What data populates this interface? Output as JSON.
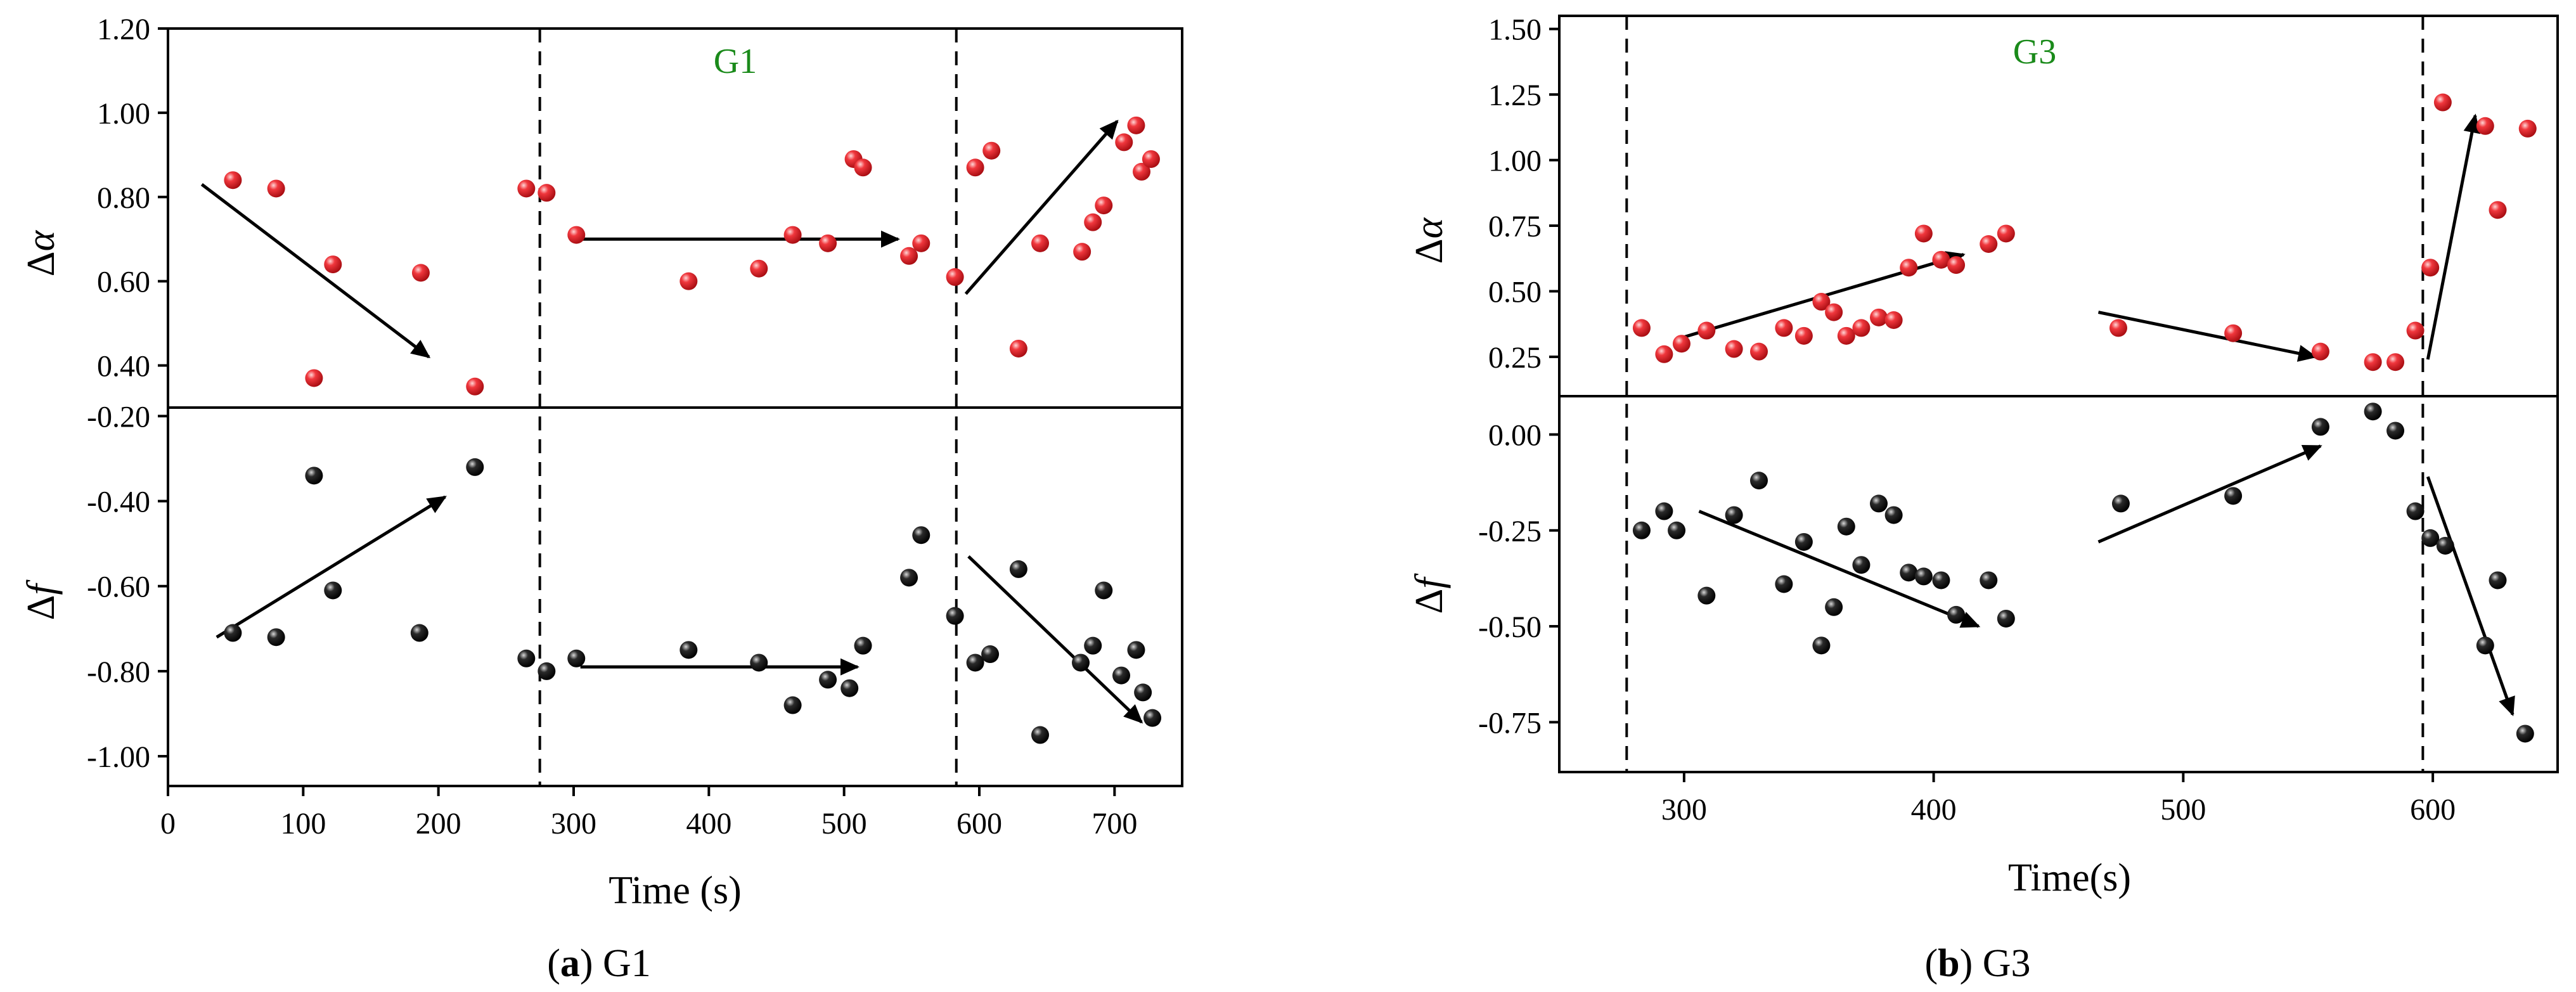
{
  "colors": {
    "red_marker": "#e8202a",
    "black_marker": "#111111",
    "group_label": "#1a8a1a",
    "axis": "#000000"
  },
  "chart_data": [
    {
      "id": "a",
      "type": "scatter",
      "caption": {
        "letter": "a",
        "open": "(",
        "close": ")",
        "rest": " G1"
      },
      "group_label": "G1",
      "xlabel": "Time (s)",
      "xlim": [
        0,
        750
      ],
      "xticks": [
        0,
        100,
        200,
        300,
        400,
        500,
        600,
        700
      ],
      "xtick_labels": [
        "0",
        "100",
        "200",
        "300",
        "400",
        "500",
        "600",
        "700"
      ],
      "dividers_x": [
        275,
        583
      ],
      "top": {
        "ylabel_prefix": "Δ",
        "ylabel_var": "α",
        "ylim": [
          0.3,
          1.2
        ],
        "yticks": [
          0.4,
          0.6,
          0.8,
          1.0,
          1.2
        ],
        "ytick_labels": [
          "0.40",
          "0.60",
          "0.80",
          "1.00",
          "1.20"
        ],
        "marker_color": "red",
        "points": [
          [
            48,
            0.84
          ],
          [
            80,
            0.82
          ],
          [
            108,
            0.37
          ],
          [
            122,
            0.64
          ],
          [
            187,
            0.62
          ],
          [
            227,
            0.35
          ],
          [
            265,
            0.82
          ],
          [
            280,
            0.81
          ],
          [
            302,
            0.71
          ],
          [
            385,
            0.6
          ],
          [
            437,
            0.63
          ],
          [
            462,
            0.71
          ],
          [
            488,
            0.69
          ],
          [
            507,
            0.89
          ],
          [
            514,
            0.87
          ],
          [
            548,
            0.66
          ],
          [
            557,
            0.69
          ],
          [
            582,
            0.61
          ],
          [
            597,
            0.87
          ],
          [
            609,
            0.91
          ],
          [
            629,
            0.44
          ],
          [
            645,
            0.69
          ],
          [
            676,
            0.67
          ],
          [
            684,
            0.74
          ],
          [
            692,
            0.78
          ],
          [
            707,
            0.93
          ],
          [
            716,
            0.97
          ],
          [
            720,
            0.86
          ],
          [
            727,
            0.89
          ]
        ],
        "arrows": [
          [
            [
              25,
              0.83
            ],
            [
              193,
              0.42
            ]
          ],
          [
            [
              305,
              0.7
            ],
            [
              540,
              0.7
            ]
          ],
          [
            [
              590,
              0.57
            ],
            [
              702,
              0.98
            ]
          ]
        ]
      },
      "bottom": {
        "ylabel_prefix": "Δ",
        "ylabel_var": "f",
        "ylim": [
          -1.07,
          -0.18
        ],
        "yticks": [
          -1.0,
          -0.8,
          -0.6,
          -0.4,
          -0.2
        ],
        "ytick_labels": [
          "-1.00",
          "-0.80",
          "-0.60",
          "-0.40",
          "-0.20"
        ],
        "marker_color": "black",
        "points": [
          [
            48,
            -0.71
          ],
          [
            80,
            -0.72
          ],
          [
            108,
            -0.34
          ],
          [
            122,
            -0.61
          ],
          [
            186,
            -0.71
          ],
          [
            227,
            -0.32
          ],
          [
            265,
            -0.77
          ],
          [
            280,
            -0.8
          ],
          [
            302,
            -0.77
          ],
          [
            385,
            -0.75
          ],
          [
            437,
            -0.78
          ],
          [
            462,
            -0.88
          ],
          [
            488,
            -0.82
          ],
          [
            504,
            -0.84
          ],
          [
            514,
            -0.74
          ],
          [
            548,
            -0.58
          ],
          [
            557,
            -0.48
          ],
          [
            582,
            -0.67
          ],
          [
            597,
            -0.78
          ],
          [
            608,
            -0.76
          ],
          [
            629,
            -0.56
          ],
          [
            645,
            -0.95
          ],
          [
            675,
            -0.78
          ],
          [
            684,
            -0.74
          ],
          [
            692,
            -0.61
          ],
          [
            705,
            -0.81
          ],
          [
            716,
            -0.75
          ],
          [
            721,
            -0.85
          ],
          [
            728,
            -0.91
          ]
        ],
        "arrows": [
          [
            [
              36,
              -0.72
            ],
            [
              205,
              -0.39
            ]
          ],
          [
            [
              305,
              -0.79
            ],
            [
              510,
              -0.79
            ]
          ],
          [
            [
              592,
              -0.53
            ],
            [
              720,
              -0.92
            ]
          ]
        ]
      }
    },
    {
      "id": "b",
      "type": "scatter",
      "caption": {
        "letter": "b",
        "open": "(",
        "close": ")",
        "rest": " G3"
      },
      "group_label": "G3",
      "xlabel": "Time(s)",
      "xlim": [
        250,
        650
      ],
      "xticks": [
        300,
        400,
        500,
        600
      ],
      "xtick_labels": [
        "300",
        "400",
        "500",
        "600"
      ],
      "dividers_x": [
        277,
        596
      ],
      "top": {
        "ylabel_prefix": "Δ",
        "ylabel_var": "α",
        "ylim": [
          0.1,
          1.55
        ],
        "yticks": [
          0.25,
          0.5,
          0.75,
          1.0,
          1.25,
          1.5
        ],
        "ytick_labels": [
          "0.25",
          "0.50",
          "0.75",
          "1.00",
          "1.25",
          "1.50"
        ],
        "marker_color": "red",
        "points": [
          [
            283,
            0.36
          ],
          [
            292,
            0.26
          ],
          [
            299,
            0.3
          ],
          [
            309,
            0.35
          ],
          [
            320,
            0.28
          ],
          [
            330,
            0.27
          ],
          [
            340,
            0.36
          ],
          [
            348,
            0.33
          ],
          [
            355,
            0.46
          ],
          [
            360,
            0.42
          ],
          [
            365,
            0.33
          ],
          [
            371,
            0.36
          ],
          [
            378,
            0.4
          ],
          [
            384,
            0.39
          ],
          [
            390,
            0.59
          ],
          [
            396,
            0.72
          ],
          [
            403,
            0.62
          ],
          [
            409,
            0.6
          ],
          [
            422,
            0.68
          ],
          [
            429,
            0.72
          ],
          [
            474,
            0.36
          ],
          [
            520,
            0.34
          ],
          [
            555,
            0.27
          ],
          [
            576,
            0.23
          ],
          [
            585,
            0.23
          ],
          [
            593,
            0.35
          ],
          [
            599,
            0.59
          ],
          [
            604,
            1.22
          ],
          [
            621,
            1.13
          ],
          [
            626,
            0.81
          ],
          [
            638,
            1.12
          ]
        ],
        "arrows": [
          [
            [
              298,
              0.32
            ],
            [
              412,
              0.64
            ]
          ],
          [
            [
              466,
              0.42
            ],
            [
              553,
              0.25
            ]
          ],
          [
            [
              598,
              0.24
            ],
            [
              617,
              1.17
            ]
          ]
        ]
      },
      "bottom": {
        "ylabel_prefix": "Δ",
        "ylabel_var": "f",
        "ylim": [
          -0.88,
          0.1
        ],
        "yticks": [
          -0.75,
          -0.5,
          -0.25,
          0.0
        ],
        "ytick_labels": [
          "-0.75",
          "-0.50",
          "-0.25",
          "0.00"
        ],
        "marker_color": "black",
        "points": [
          [
            283,
            -0.25
          ],
          [
            292,
            -0.2
          ],
          [
            297,
            -0.25
          ],
          [
            309,
            -0.42
          ],
          [
            320,
            -0.21
          ],
          [
            330,
            -0.12
          ],
          [
            340,
            -0.39
          ],
          [
            348,
            -0.28
          ],
          [
            355,
            -0.55
          ],
          [
            360,
            -0.45
          ],
          [
            365,
            -0.24
          ],
          [
            371,
            -0.34
          ],
          [
            378,
            -0.18
          ],
          [
            384,
            -0.21
          ],
          [
            390,
            -0.36
          ],
          [
            396,
            -0.37
          ],
          [
            403,
            -0.38
          ],
          [
            409,
            -0.47
          ],
          [
            422,
            -0.38
          ],
          [
            429,
            -0.48
          ],
          [
            475,
            -0.18
          ],
          [
            520,
            -0.16
          ],
          [
            555,
            0.02
          ],
          [
            576,
            0.06
          ],
          [
            585,
            0.01
          ],
          [
            593,
            -0.2
          ],
          [
            599,
            -0.27
          ],
          [
            605,
            -0.29
          ],
          [
            621,
            -0.55
          ],
          [
            626,
            -0.38
          ],
          [
            637,
            -0.78
          ]
        ],
        "arrows": [
          [
            [
              306,
              -0.2
            ],
            [
              418,
              -0.5
            ]
          ],
          [
            [
              466,
              -0.28
            ],
            [
              555,
              -0.03
            ]
          ],
          [
            [
              598,
              -0.11
            ],
            [
              632,
              -0.73
            ]
          ]
        ]
      }
    }
  ]
}
